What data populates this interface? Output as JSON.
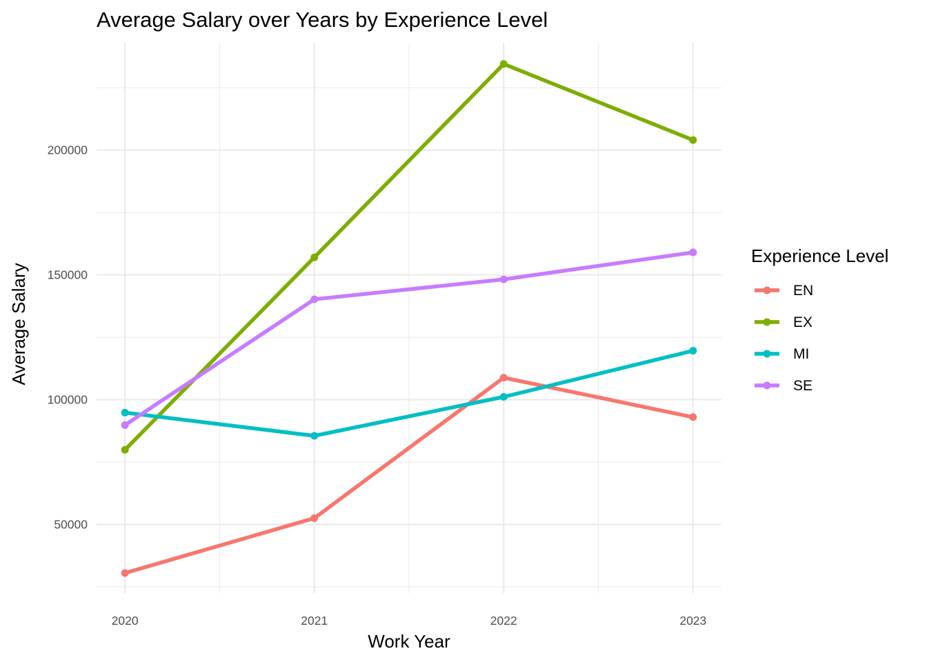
{
  "chart_data": {
    "type": "line",
    "title": "Average Salary over Years by Experience Level",
    "xlabel": "Work Year",
    "ylabel": "Average Salary",
    "x": [
      2020,
      2021,
      2022,
      2023
    ],
    "x_tick_labels": [
      "2020",
      "2021",
      "2022",
      "2023"
    ],
    "y_ticks": [
      50000,
      100000,
      150000,
      200000
    ],
    "y_tick_labels": [
      "50000",
      "100000",
      "150000",
      "200000"
    ],
    "ylim": [
      22500,
      243000
    ],
    "xlim": [
      2019.85,
      2023.15
    ],
    "grid": true,
    "legend_title": "Experience Level",
    "legend_position": "right",
    "series": [
      {
        "name": "EN",
        "color": "#F8766D",
        "values": [
          30500,
          52500,
          108800,
          93000
        ]
      },
      {
        "name": "EX",
        "color": "#7CAE00",
        "values": [
          79900,
          157000,
          234500,
          204000
        ]
      },
      {
        "name": "MI",
        "color": "#00BFC4",
        "values": [
          94800,
          85500,
          101100,
          119600
        ]
      },
      {
        "name": "SE",
        "color": "#C77CFF",
        "values": [
          89800,
          140200,
          148200,
          159000
        ]
      }
    ]
  }
}
